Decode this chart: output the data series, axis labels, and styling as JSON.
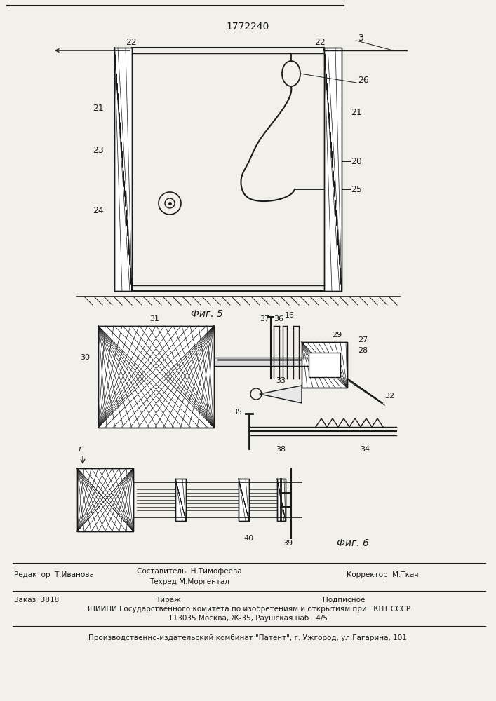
{
  "title": "1772240",
  "background_color": "#f2f0eb",
  "fig5_label": "Фиг. 5",
  "fig6_label": "Фиг. 6",
  "footer_editor": "Редактор  Т.Иванова",
  "footer_author": "Составитель  Н.Тимофеева",
  "footer_techred": "Техред М.Моргентал",
  "footer_corrector": "Корректор  М.Ткач",
  "footer_order": "Заказ  3818",
  "footer_tirazh": "Тираж",
  "footer_podpisnoe": "Подписное",
  "footer_vniipи": "ВНИИПИ Государственного комитета по изобретениям и открытиям при ГКНТ СССР",
  "footer_addr": "113035 Москва, Ж-35, Раушская наб.. 4/5",
  "footer_patent": "Производственно-издательский комбинат \"Патент\", г. Ужгород, ул.Гагарина, 101",
  "line_color": "#1a1a1a"
}
